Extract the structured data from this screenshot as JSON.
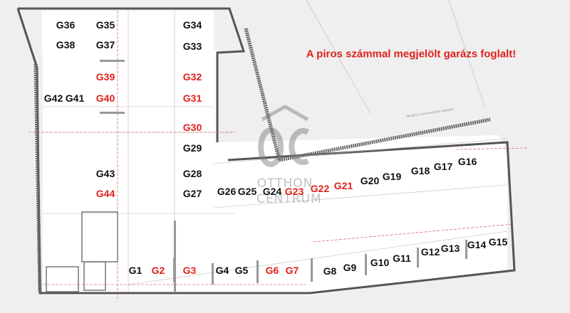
{
  "notice": "A piros számmal megjelölt garázs foglalt!",
  "street_label": "Meglévő szomszédos ingatlan",
  "watermark": {
    "logo": "OC",
    "line1": "OTTHON",
    "line2": "CENTRUM"
  },
  "colors": {
    "occupied": "#e0201c",
    "free": "#111111",
    "wall": "#555555"
  },
  "garages": [
    {
      "label": "G1",
      "occupied": false
    },
    {
      "label": "G2",
      "occupied": true
    },
    {
      "label": "G3",
      "occupied": true
    },
    {
      "label": "G4",
      "occupied": false
    },
    {
      "label": "G5",
      "occupied": false
    },
    {
      "label": "G6",
      "occupied": true
    },
    {
      "label": "G7",
      "occupied": true
    },
    {
      "label": "G8",
      "occupied": false
    },
    {
      "label": "G9",
      "occupied": false
    },
    {
      "label": "G10",
      "occupied": false
    },
    {
      "label": "G11",
      "occupied": false
    },
    {
      "label": "G12",
      "occupied": false
    },
    {
      "label": "G13",
      "occupied": false
    },
    {
      "label": "G14",
      "occupied": false
    },
    {
      "label": "G15",
      "occupied": false
    },
    {
      "label": "G16",
      "occupied": false
    },
    {
      "label": "G17",
      "occupied": false
    },
    {
      "label": "G18",
      "occupied": false
    },
    {
      "label": "G19",
      "occupied": false
    },
    {
      "label": "G20",
      "occupied": false
    },
    {
      "label": "G21",
      "occupied": true
    },
    {
      "label": "G22",
      "occupied": true
    },
    {
      "label": "G23",
      "occupied": true
    },
    {
      "label": "G24",
      "occupied": false
    },
    {
      "label": "G25",
      "occupied": false
    },
    {
      "label": "G26",
      "occupied": false
    },
    {
      "label": "G27",
      "occupied": false
    },
    {
      "label": "G28",
      "occupied": false
    },
    {
      "label": "G29",
      "occupied": false
    },
    {
      "label": "G30",
      "occupied": true
    },
    {
      "label": "G31",
      "occupied": true
    },
    {
      "label": "G32",
      "occupied": true
    },
    {
      "label": "G33",
      "occupied": false
    },
    {
      "label": "G34",
      "occupied": false
    },
    {
      "label": "G35",
      "occupied": false
    },
    {
      "label": "G36",
      "occupied": false
    },
    {
      "label": "G37",
      "occupied": false
    },
    {
      "label": "G38",
      "occupied": false
    },
    {
      "label": "G39",
      "occupied": true
    },
    {
      "label": "G40",
      "occupied": true
    },
    {
      "label": "G41",
      "occupied": false
    },
    {
      "label": "G42",
      "occupied": false
    },
    {
      "label": "G43",
      "occupied": false
    },
    {
      "label": "G44",
      "occupied": true
    }
  ]
}
